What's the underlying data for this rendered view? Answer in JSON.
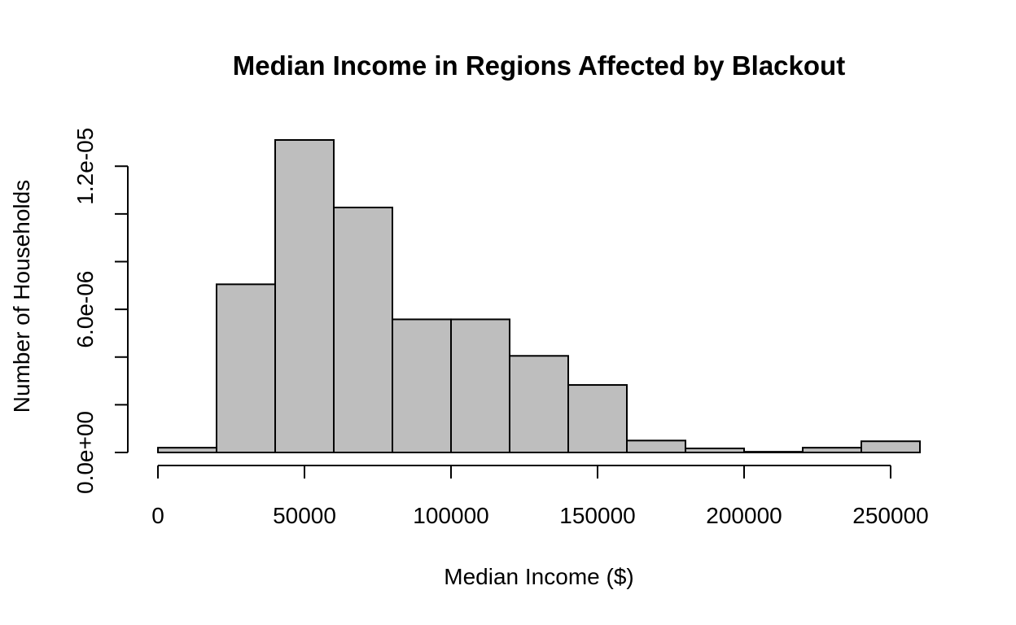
{
  "chart_data": {
    "type": "bar",
    "subtype": "histogram",
    "title": "Median Income in Regions Affected by Blackout",
    "xlabel": "Median Income ($)",
    "ylabel": "Number of Households",
    "bin_edges": [
      0,
      20000,
      40000,
      60000,
      80000,
      100000,
      120000,
      140000,
      160000,
      180000,
      200000,
      220000,
      240000,
      260000
    ],
    "values": [
      2e-07,
      7.05e-06,
      1.31e-05,
      1.027e-05,
      5.58e-06,
      5.58e-06,
      4.05e-06,
      2.83e-06,
      5e-07,
      1.7e-07,
      3e-08,
      2e-07,
      4.7e-07
    ],
    "xlim": [
      0,
      260000
    ],
    "ylim": [
      0,
      1.31e-05
    ],
    "x_ticks": [
      0,
      50000,
      100000,
      150000,
      200000,
      250000
    ],
    "x_tick_labels": [
      "0",
      "50000",
      "100000",
      "150000",
      "200000",
      "250000"
    ],
    "y_ticks": [
      0,
      2e-06,
      4e-06,
      6e-06,
      8e-06,
      1e-05,
      1.2e-05
    ],
    "y_tick_labels": [
      "0.0e+00",
      "",
      "",
      "6.0e-06",
      "",
      "",
      "1.2e-05"
    ],
    "bar_fill": "#bebebe",
    "bar_stroke": "#000000",
    "grid": false,
    "legend": "none"
  }
}
